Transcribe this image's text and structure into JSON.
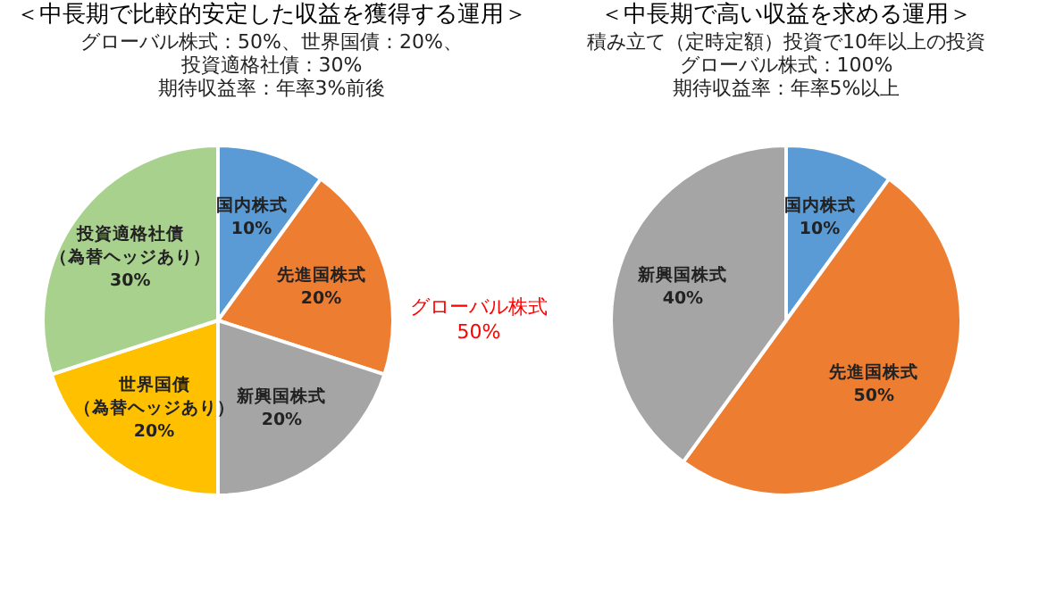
{
  "chart_data": [
    {
      "type": "pie",
      "title": "＜中長期で比較的安定した収益を獲得する運用＞",
      "subtitle": "グローバル株式：50%、世界国債：20%、投資適格社債：30%",
      "categories": [
        "国内株式",
        "先進国株式",
        "新興国株式",
        "世界国債（為替ヘッジあり）",
        "投資適格社債（為替ヘッジあり）"
      ],
      "values": [
        10,
        20,
        20,
        20,
        30
      ],
      "value_labels": [
        "10%",
        "20%",
        "20%",
        "20%",
        "30%"
      ],
      "colors": [
        "#5b9bd5",
        "#ed7d31",
        "#a5a5a5",
        "#ffc000",
        "#a9d18e"
      ],
      "annotations": [
        "期待収益率：年率3%前後",
        "グローバル株式",
        "50%"
      ]
    },
    {
      "type": "pie",
      "title": "＜中長期で高い収益を求める運用＞",
      "subtitle": "積み立て（定時定額）投資で10年以上の投資グローバル株式：100%",
      "categories": [
        "国内株式",
        "先進国株式",
        "新興国株式"
      ],
      "values": [
        10,
        50,
        40
      ],
      "value_labels": [
        "10%",
        "50%",
        "40%"
      ],
      "colors": [
        "#5b9bd5",
        "#ed7d31",
        "#a5a5a5"
      ],
      "annotations": [
        "期待収益率：年率5%以上"
      ]
    }
  ]
}
